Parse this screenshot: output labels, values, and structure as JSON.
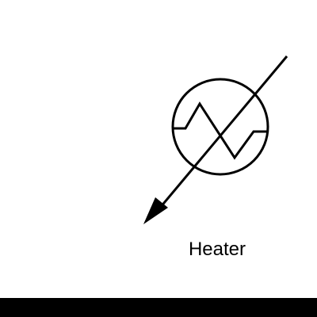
{
  "symbol": {
    "label": "Heater",
    "icon": "heater-symbol-icon",
    "stroke_color": "#000000"
  },
  "footer": {
    "color": "#000000"
  }
}
